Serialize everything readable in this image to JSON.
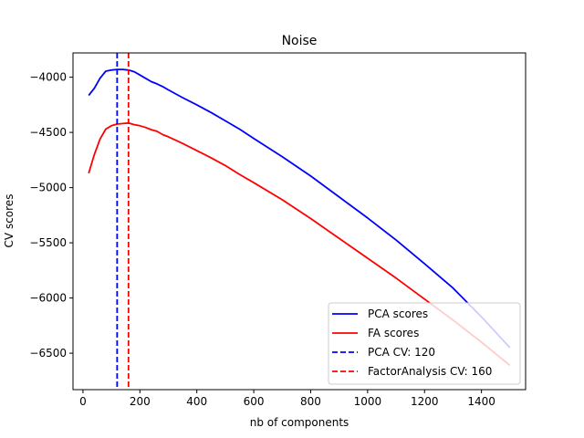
{
  "chart_data": {
    "type": "line",
    "title": "Noise",
    "xlabel": "nb of components",
    "ylabel": "CV scores",
    "xlim": [
      -35,
      1555
    ],
    "ylim": [
      -6830,
      -3780
    ],
    "xticks": [
      0,
      200,
      400,
      600,
      800,
      1000,
      1200,
      1400
    ],
    "yticks": [
      -4000,
      -4500,
      -5000,
      -5500,
      -6000,
      -6500
    ],
    "xtick_labels": [
      "0",
      "200",
      "400",
      "600",
      "800",
      "1000",
      "1200",
      "1400"
    ],
    "ytick_labels": [
      "−4000",
      "−4500",
      "−5000",
      "−5500",
      "−6000",
      "−6500"
    ],
    "grid": false,
    "legend_position": "lower-right",
    "series": [
      {
        "name": "PCA scores",
        "color": "#0000ff",
        "style": "solid",
        "x": [
          20,
          40,
          60,
          80,
          100,
          120,
          140,
          160,
          180,
          200,
          220,
          240,
          260,
          280,
          300,
          350,
          400,
          450,
          500,
          550,
          600,
          700,
          800,
          900,
          1000,
          1100,
          1200,
          1300,
          1400,
          1500
        ],
        "y": [
          -4165,
          -4100,
          -4010,
          -3945,
          -3935,
          -3930,
          -3930,
          -3935,
          -3950,
          -3980,
          -4010,
          -4040,
          -4060,
          -4085,
          -4115,
          -4185,
          -4250,
          -4320,
          -4395,
          -4470,
          -4555,
          -4720,
          -4895,
          -5085,
          -5275,
          -5475,
          -5690,
          -5910,
          -6170,
          -6450
        ]
      },
      {
        "name": "FA scores",
        "color": "#ff0000",
        "style": "solid",
        "x": [
          20,
          40,
          60,
          80,
          100,
          120,
          140,
          160,
          180,
          200,
          220,
          240,
          260,
          280,
          300,
          350,
          400,
          450,
          500,
          550,
          600,
          700,
          800,
          900,
          1000,
          1100,
          1200,
          1300,
          1400,
          1500
        ],
        "y": [
          -4870,
          -4700,
          -4560,
          -4470,
          -4440,
          -4425,
          -4420,
          -4415,
          -4430,
          -4440,
          -4455,
          -4475,
          -4490,
          -4520,
          -4540,
          -4600,
          -4665,
          -4730,
          -4800,
          -4880,
          -4955,
          -5110,
          -5280,
          -5460,
          -5640,
          -5820,
          -6010,
          -6200,
          -6400,
          -6610
        ]
      },
      {
        "name": "PCA CV: 120",
        "color": "#0000ff",
        "style": "dashed",
        "vline_x": 120
      },
      {
        "name": "FactorAnalysis CV: 160",
        "color": "#ff0000",
        "style": "dashed",
        "vline_x": 160
      }
    ]
  }
}
